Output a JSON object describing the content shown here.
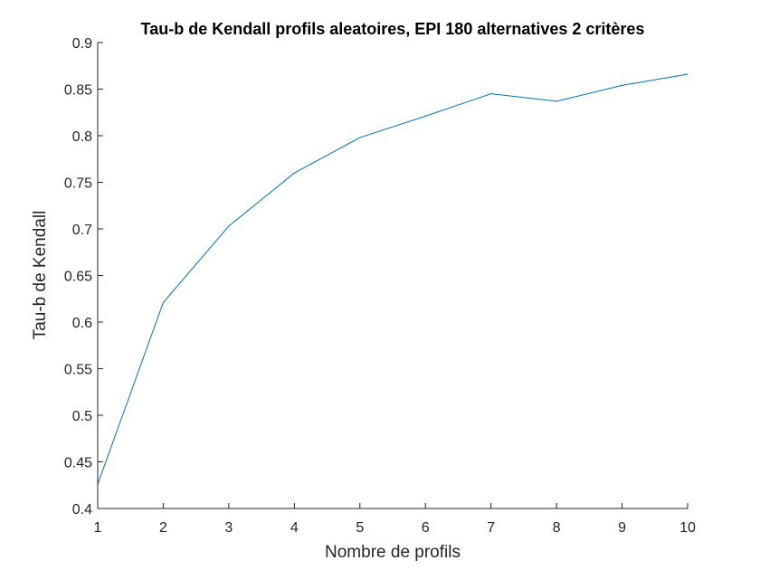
{
  "chart_data": {
    "type": "line",
    "title": "Tau-b de Kendall profils aleatoires, EPI 180 alternatives 2 critères",
    "xlabel": "Nombre de profils",
    "ylabel": "Tau-b de Kendall",
    "xlim": [
      1,
      10
    ],
    "ylim": [
      0.4,
      0.9
    ],
    "x_ticks": [
      "1",
      "2",
      "3",
      "4",
      "5",
      "6",
      "7",
      "8",
      "9",
      "10"
    ],
    "y_ticks": [
      "0.4",
      "0.45",
      "0.5",
      "0.55",
      "0.6",
      "0.65",
      "0.7",
      "0.75",
      "0.8",
      "0.85",
      "0.9"
    ],
    "grid": false,
    "legend": "none",
    "colors": {
      "line": "#0072BD",
      "axis": "#262626"
    },
    "series": [
      {
        "x": [
          1,
          2,
          3,
          4,
          5,
          6,
          7,
          8,
          9,
          10
        ],
        "values": [
          0.426,
          0.621,
          0.703,
          0.76,
          0.798,
          0.821,
          0.845,
          0.837,
          0.854,
          0.866
        ]
      }
    ]
  }
}
